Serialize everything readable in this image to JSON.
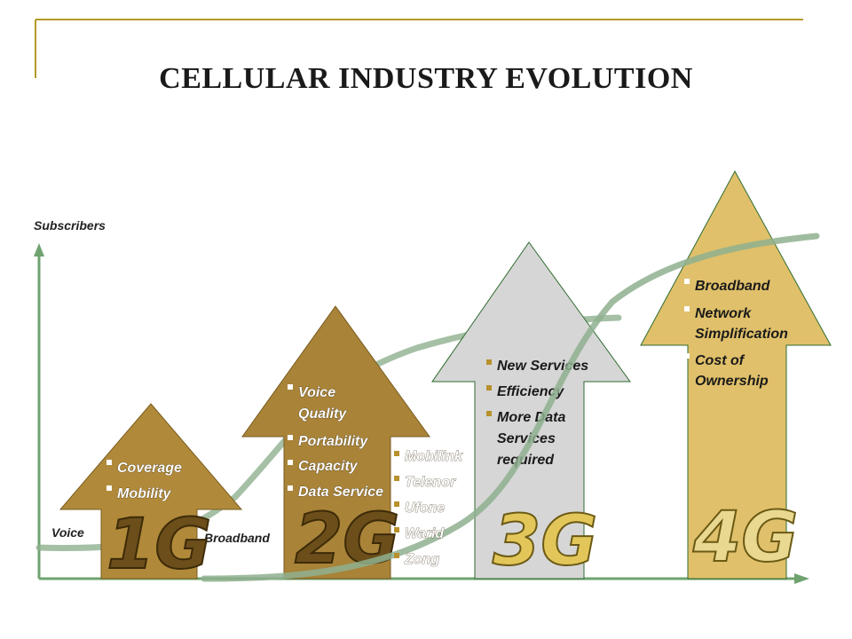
{
  "title": "CELLULAR INDUSTRY EVOLUTION",
  "axis": {
    "y_label": "Subscribers",
    "voice_label": "Voice",
    "broadband_label": "Broadband"
  },
  "colors": {
    "frame": "#b49a28",
    "curve": "#8fb08f",
    "axis": "#6fa36f",
    "arrow_1g": "#b08a3a",
    "arrow_2g": "#a88338",
    "arrow_3g": "#d6d6d6",
    "arrow_4g": "#e0c06a"
  },
  "generations": [
    {
      "label": "1G",
      "bullets": [
        "Coverage",
        "Mobility"
      ]
    },
    {
      "label": "2G",
      "bullets": [
        "Voice Quality",
        "Portability",
        "Capacity",
        "Data Service"
      ]
    },
    {
      "label": "3G",
      "bullets": [
        "New Services",
        "Efficiency",
        "More Data Services required"
      ]
    },
    {
      "label": "4G",
      "bullets": [
        "Broadband",
        "Network Simplification",
        "Cost of Ownership"
      ]
    }
  ],
  "operators": [
    "Mobilink",
    "Telenor",
    "Ufone",
    "Warid",
    "Zong"
  ]
}
